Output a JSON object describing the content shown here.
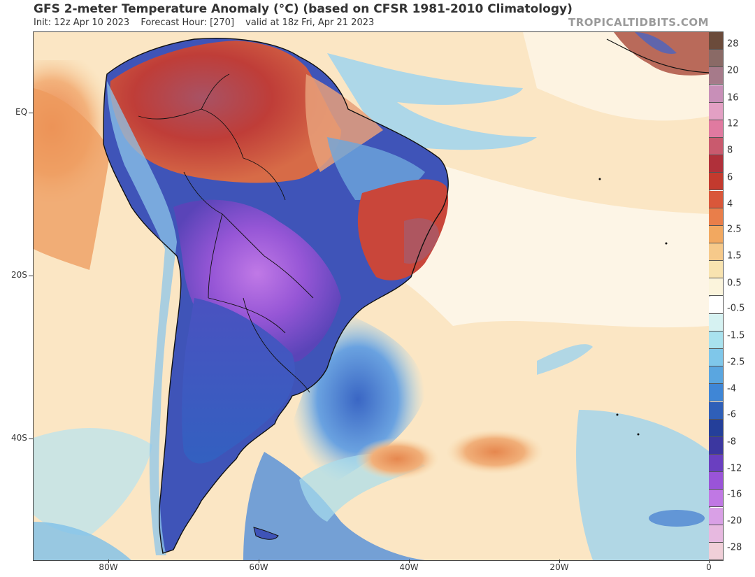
{
  "header": {
    "title": "GFS 2-meter Temperature Anomaly (°C) (based on CFSR 1981-2010 Climatology)",
    "init": "Init: 12z Apr 10 2023",
    "forecast_hour": "Forecast Hour: [270]",
    "valid": "valid at 18z Fri, Apr 21 2023",
    "brand": "TROPICALTIDBITS.COM"
  },
  "axes": {
    "lat_labels": [
      "EQ",
      "20S",
      "40S"
    ],
    "lon_labels": [
      "80W",
      "60W",
      "40W",
      "20W",
      "0"
    ]
  },
  "colorbar": {
    "labels": [
      "28",
      "20",
      "16",
      "12",
      "8",
      "6",
      "4",
      "2.5",
      "1.5",
      "0.5",
      "-0.5",
      "-1.5",
      "-2.5",
      "-4",
      "-6",
      "-8",
      "-12",
      "-16",
      "-20",
      "-28"
    ],
    "colors": [
      "#6b4b3b",
      "#8a6a66",
      "#a67a8a",
      "#c88fb8",
      "#e3a0c4",
      "#e07aa0",
      "#c95a6e",
      "#b0303a",
      "#c33a2e",
      "#d9573a",
      "#e97e4a",
      "#f2a860",
      "#f6c98a",
      "#f8e3b0",
      "#fbf4dc",
      "#ffffff",
      "#d6f2f2",
      "#a9e2ee",
      "#7fc7ea",
      "#5aa6e0",
      "#3f86d6",
      "#2f5fb8",
      "#243f9a",
      "#3c37a0",
      "#6a3fc0",
      "#9a54d8",
      "#c078e4",
      "#d9a0e6",
      "#e7b9e0",
      "#f0cfd8"
    ]
  },
  "map": {
    "palette": {
      "ocean_warm": "#f8dcb0",
      "ocean_neutral": "#fdf3e1",
      "ocean_cool": "#9fd3ee",
      "ocean_cold": "#4f86d2",
      "land_hot": "#c4423a",
      "land_very_hot": "#9e4a5e",
      "land_cold": "#3f4fb4",
      "land_very_cold": "#8a4ed0",
      "border": "#1a1a1a"
    }
  }
}
